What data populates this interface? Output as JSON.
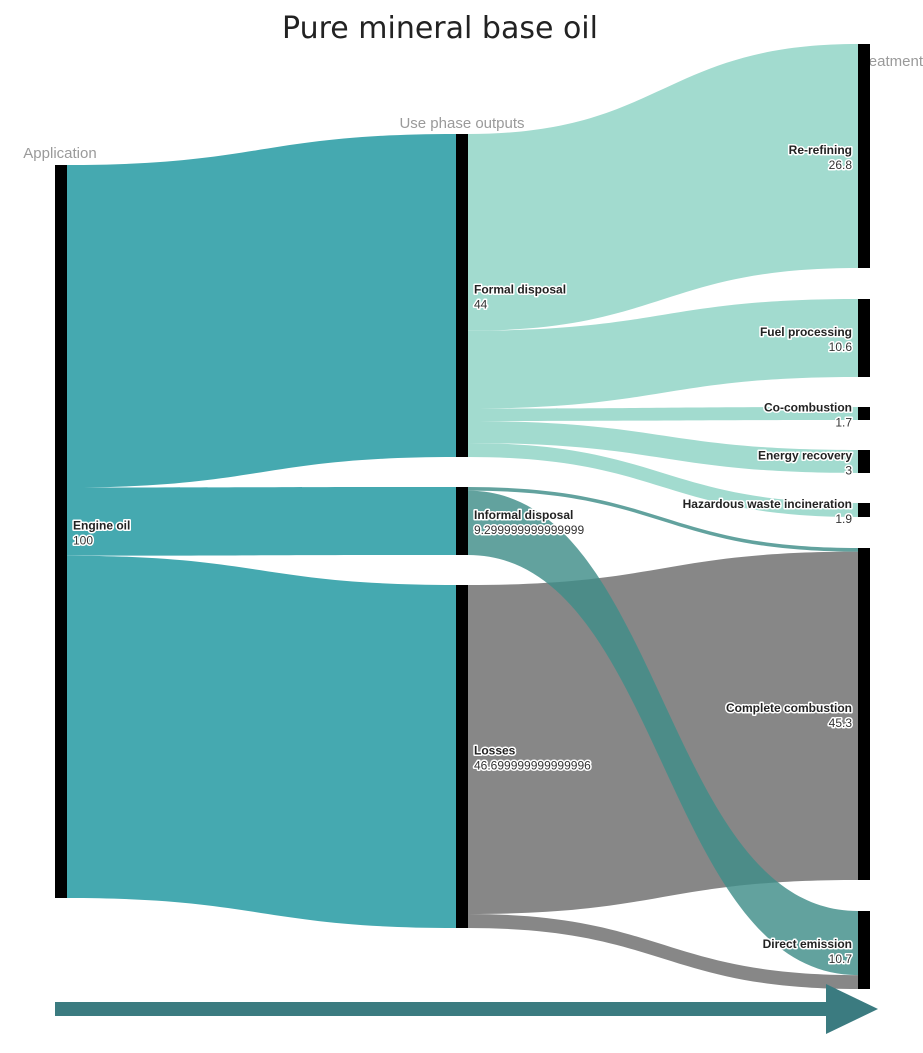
{
  "title": "Pure mineral base oil",
  "columns": {
    "application": "Application",
    "use_phase": "Use phase outputs",
    "eol": "EoL treatment"
  },
  "colors": {
    "engine_oil": "#45a9b0",
    "formal_disposal": "#a2dbcf",
    "informal_disposal": "#3f8e89",
    "losses": "#7a7a7a",
    "node": "#000000",
    "arrow": "#3b7b80"
  },
  "nodes": [
    {
      "id": "engine-oil",
      "label": "Engine oil",
      "value": "100"
    },
    {
      "id": "formal-disposal",
      "label": "Formal disposal",
      "value": "44"
    },
    {
      "id": "informal-disposal",
      "label": "Informal disposal",
      "value": "9.299999999999999"
    },
    {
      "id": "losses",
      "label": "Losses",
      "value": "46.699999999999996"
    },
    {
      "id": "re-refining",
      "label": "Re-refining",
      "value": "26.8"
    },
    {
      "id": "fuel-processing",
      "label": "Fuel processing",
      "value": "10.6"
    },
    {
      "id": "co-combustion",
      "label": "Co-combustion",
      "value": "1.7"
    },
    {
      "id": "energy-recovery",
      "label": "Energy recovery",
      "value": "3"
    },
    {
      "id": "hazardous-waste-incineration",
      "label": "Hazardous waste incineration",
      "value": "1.9"
    },
    {
      "id": "complete-combustion",
      "label": "Complete combustion",
      "value": "45.3"
    },
    {
      "id": "direct-emission",
      "label": "Direct emission",
      "value": "10.7"
    }
  ],
  "flows": [
    {
      "source": "Engine oil",
      "target": "Formal disposal",
      "value": 44
    },
    {
      "source": "Engine oil",
      "target": "Informal disposal",
      "value": 9.3
    },
    {
      "source": "Engine oil",
      "target": "Losses",
      "value": 46.7
    },
    {
      "source": "Formal disposal",
      "target": "Re-refining",
      "value": 26.8
    },
    {
      "source": "Formal disposal",
      "target": "Fuel processing",
      "value": 10.6
    },
    {
      "source": "Formal disposal",
      "target": "Co-combustion",
      "value": 1.7
    },
    {
      "source": "Formal disposal",
      "target": "Energy recovery",
      "value": 3
    },
    {
      "source": "Formal disposal",
      "target": "Hazardous waste incineration",
      "value": 1.9
    },
    {
      "source": "Informal disposal",
      "target": "Complete combustion",
      "value": 0.5
    },
    {
      "source": "Informal disposal",
      "target": "Direct emission",
      "value": 8.8
    },
    {
      "source": "Losses",
      "target": "Complete combustion",
      "value": 44.8
    },
    {
      "source": "Losses",
      "target": "Direct emission",
      "value": 1.9
    }
  ],
  "arrow_icon": "right-arrow-icon"
}
